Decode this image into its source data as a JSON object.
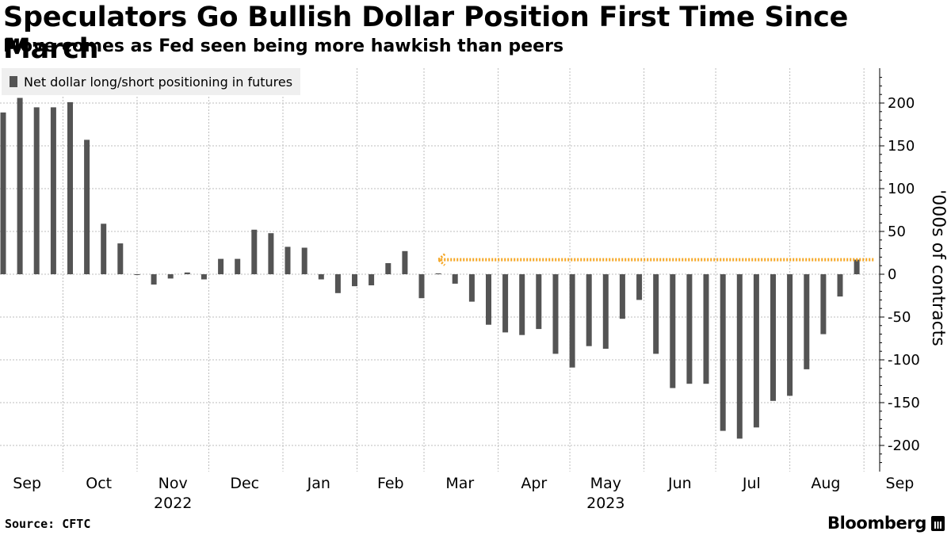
{
  "title": "Speculators Go Bullish Dollar Position First Time Since March",
  "subtitle": "Move comes as Fed seen being more hawkish than peers",
  "source": "Source: CFTC",
  "brand": "Bloomberg",
  "colors": {
    "bar": "#545454",
    "grid": "#bcbcbc",
    "annotation": "#f5a623"
  },
  "chart_data": {
    "type": "bar",
    "legend": "Net dollar long/short positioning in futures",
    "legend_position": "top-left",
    "ylabel": "'000s of contracts",
    "ylim": [
      -230,
      240
    ],
    "yticks": [
      200,
      150,
      100,
      50,
      0,
      -50,
      -100,
      -150,
      -200
    ],
    "grid": true,
    "x_start": "2022-09-06",
    "interval_days": 7,
    "values": [
      189,
      206,
      195,
      195,
      201,
      157,
      59,
      36,
      0,
      -12,
      -5,
      2,
      -6,
      18,
      18,
      52,
      48,
      32,
      31,
      -6,
      -22,
      -14,
      -13,
      13,
      27,
      -28,
      1,
      -11,
      -32,
      -59,
      -68,
      -71,
      -64,
      -93,
      -109,
      -84,
      -87,
      -52,
      -30,
      -93,
      -133,
      -128,
      -128,
      -183,
      -192,
      -179,
      -148,
      -142,
      -111,
      -70,
      -26,
      17
    ],
    "x_tick_labels": [
      {
        "label": "Sep",
        "date": "2022-09-16"
      },
      {
        "label": "Oct",
        "date": "2022-10-16"
      },
      {
        "label": "Nov",
        "date": "2022-11-16"
      },
      {
        "label": "Dec",
        "date": "2022-12-16"
      },
      {
        "label": "Jan",
        "date": "2023-01-16"
      },
      {
        "label": "Feb",
        "date": "2023-02-15"
      },
      {
        "label": "Mar",
        "date": "2023-03-16"
      },
      {
        "label": "Apr",
        "date": "2023-04-16"
      },
      {
        "label": "May",
        "date": "2023-05-16"
      },
      {
        "label": "Jun",
        "date": "2023-06-16"
      },
      {
        "label": "Jul",
        "date": "2023-07-16"
      },
      {
        "label": "Aug",
        "date": "2023-08-16"
      },
      {
        "label": "Sep",
        "date": "2023-09-16"
      }
    ],
    "year_labels": [
      {
        "label": "2022",
        "date": "2022-11-16"
      },
      {
        "label": "2023",
        "date": "2023-05-16"
      }
    ],
    "annotation": {
      "type": "dotted-arrow",
      "from_date": "2023-09-05",
      "to_date": "2023-03-07",
      "y": 17
    }
  }
}
